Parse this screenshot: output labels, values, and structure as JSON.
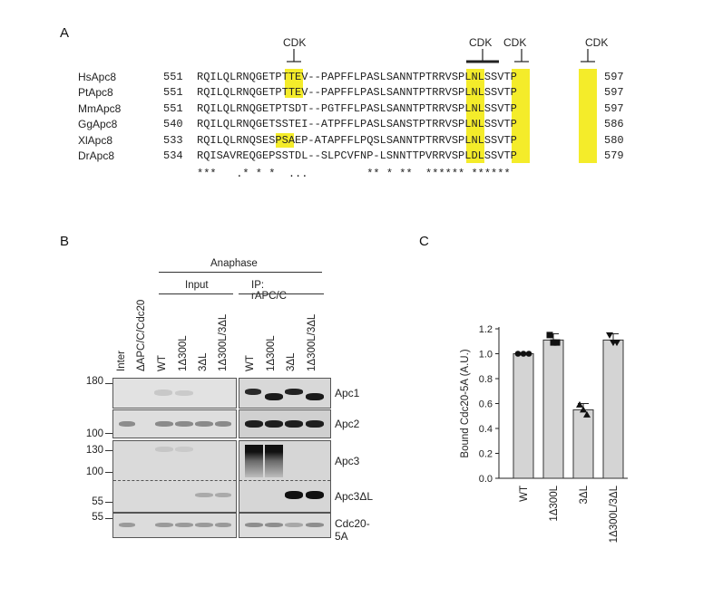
{
  "panels": {
    "a": "A",
    "b": "B",
    "c": "C"
  },
  "alignment": {
    "cdk_label": "CDK",
    "rows": [
      {
        "name": "HsApc8",
        "start": "551",
        "seq": "RQILQLRNQGETPTTEV--PAPFFLPASLSANNTPTRRVSPLNLSSVTP",
        "end": "597"
      },
      {
        "name": "PtApc8",
        "start": "551",
        "seq": "RQILQLRNQGETPTTEV--PAPFFLPASLSANNTPTRRVSPLNLSSVTP",
        "end": "597"
      },
      {
        "name": "MmApc8",
        "start": "551",
        "seq": "RQILQLRNQGETPTSDT--PGTFFLPASLSANNTPTRRVSPLNLSSVTP",
        "end": "597"
      },
      {
        "name": "GgApc8",
        "start": "540",
        "seq": "RQILQLRNQGETSSTEI--ATPFFLPASLSANSTPTRRVSPLNLSSVTP",
        "end": "586"
      },
      {
        "name": "XlApc8",
        "start": "533",
        "seq": "RQILQLRNQSESPSAEP-ATAPFFLPQSLSANNTPTRRVSPLNLSSVTP",
        "end": "580"
      },
      {
        "name": "DrApc8",
        "start": "534",
        "seq": "RQISAVREQGEPSSTDL--SLPCVFNP-LSNNTTPVRRVSPLDLSSVTP",
        "end": "579"
      }
    ],
    "conservation": "***   .* * *  ...         ** * **  ****** ******",
    "highlight_color": "#f4ec2a"
  },
  "blot": {
    "header": "Anaphase",
    "group_input": "Input",
    "group_ip": "IP: rAPC/C",
    "lanes_left": [
      "Inter",
      "ΔAPC/C/Cdc20",
      "WT",
      "1Δ300L",
      "3ΔL",
      "1Δ300L/3ΔL"
    ],
    "lanes_right": [
      "WT",
      "1Δ300L",
      "3ΔL",
      "1Δ300L/3ΔL"
    ],
    "mw_markers": [
      "180",
      "100",
      "130",
      "100",
      "55",
      "55"
    ],
    "rows": [
      "Apc1",
      "Apc2",
      "Apc3",
      "Apc3ΔL",
      "Cdc20-5A"
    ]
  },
  "chart_data": {
    "type": "bar",
    "categories": [
      "WT",
      "1Δ300L",
      "3ΔL",
      "1Δ300L/3ΔL"
    ],
    "values": [
      1.0,
      1.11,
      0.55,
      1.11
    ],
    "errors": [
      0.0,
      0.05,
      0.05,
      0.05
    ],
    "points": [
      [
        1.0,
        1.0,
        1.0
      ],
      [
        1.15,
        1.09,
        1.09
      ],
      [
        0.59,
        0.51,
        0.55
      ],
      [
        1.15,
        1.09,
        1.09
      ]
    ],
    "markers": [
      "circle",
      "square",
      "triangle-up",
      "triangle-down"
    ],
    "ylabel": "Bound Cdc20-5A (A.U.)",
    "ylim": [
      0,
      1.2
    ],
    "yticks": [
      "0.0",
      "0.2",
      "0.4",
      "0.6",
      "0.8",
      "1.0",
      "1.2"
    ],
    "bar_color": "#d4d4d4"
  }
}
